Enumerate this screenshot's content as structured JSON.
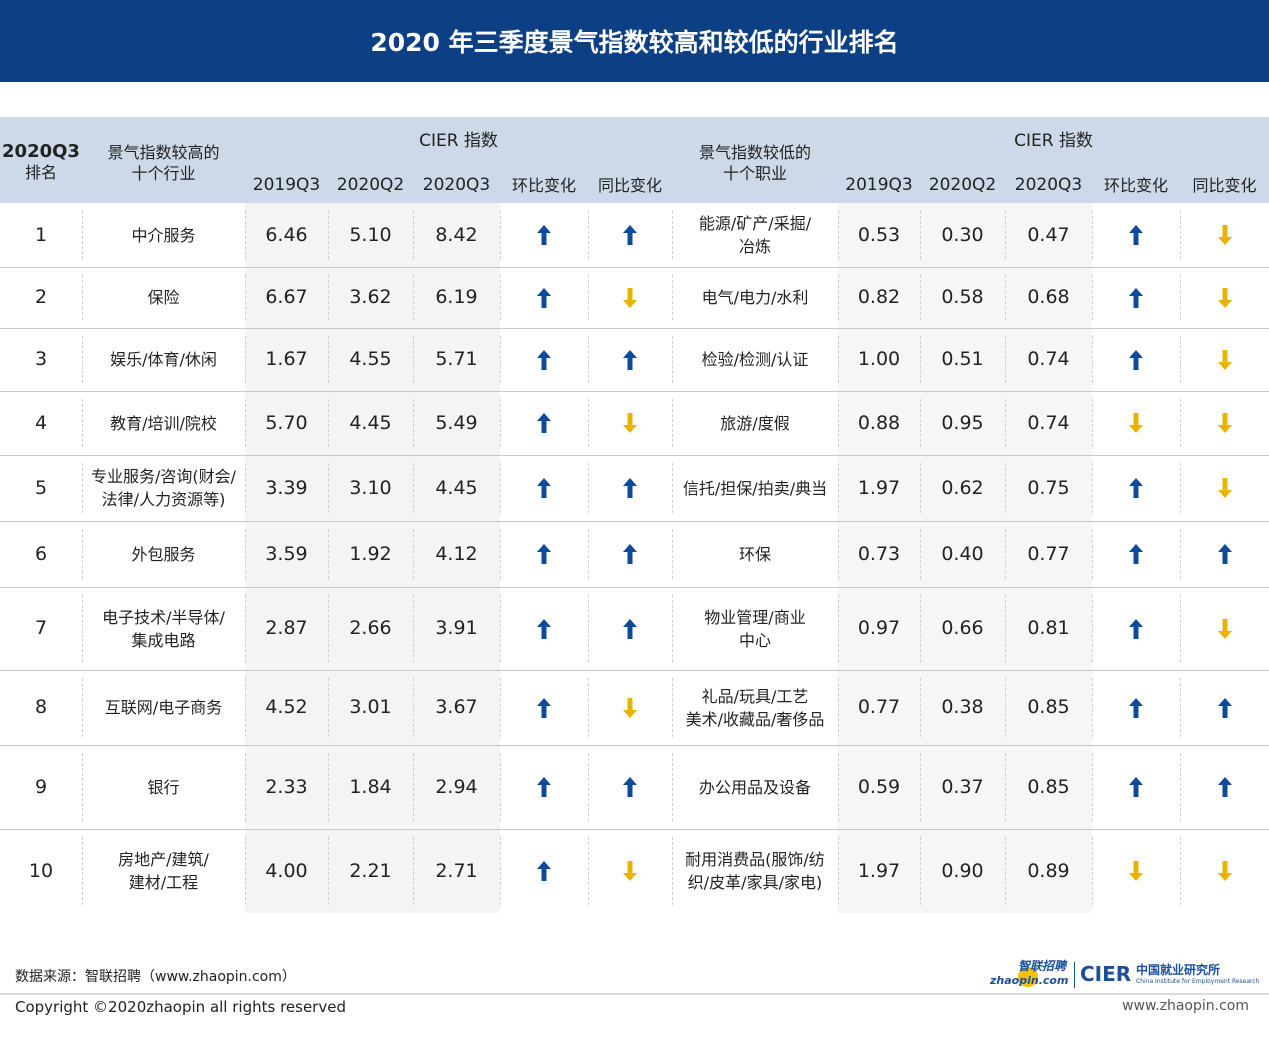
{
  "title": "2020 年三季度景气指数较高和较低的行业排名",
  "header": {
    "rank": [
      "2020Q3",
      "排名"
    ],
    "left_group": [
      "景气指数较高的",
      "十个行业"
    ],
    "right_group": [
      "景气指数较低的",
      "十个职业"
    ],
    "cier": "CIER 指数",
    "cols": [
      "2019Q3",
      "2020Q2",
      "2020Q3",
      "环比变化",
      "同比变化"
    ]
  },
  "colors": {
    "header_bg": "#0d3f85",
    "thead_bg": "#cdd9e9",
    "up": "#0d4a9a",
    "down": "#e8b400"
  },
  "chart_data": {
    "type": "table",
    "title": "2020 年三季度景气指数较高和较低的行业排名",
    "rows": [
      {
        "rank": "1",
        "high": {
          "name": [
            "中介服务"
          ],
          "v": [
            "6.46",
            "5.10",
            "8.42"
          ],
          "qoq": "up",
          "yoy": "up"
        },
        "low": {
          "name": [
            "能源/矿产/采掘/",
            "冶炼"
          ],
          "v": [
            "0.53",
            "0.30",
            "0.47"
          ],
          "qoq": "up",
          "yoy": "down"
        }
      },
      {
        "rank": "2",
        "high": {
          "name": [
            "保险"
          ],
          "v": [
            "6.67",
            "3.62",
            "6.19"
          ],
          "qoq": "up",
          "yoy": "down"
        },
        "low": {
          "name": [
            "电气/电力/水利"
          ],
          "v": [
            "0.82",
            "0.58",
            "0.68"
          ],
          "qoq": "up",
          "yoy": "down"
        }
      },
      {
        "rank": "3",
        "high": {
          "name": [
            "娱乐/体育/休闲"
          ],
          "v": [
            "1.67",
            "4.55",
            "5.71"
          ],
          "qoq": "up",
          "yoy": "up"
        },
        "low": {
          "name": [
            "检验/检测/认证"
          ],
          "v": [
            "1.00",
            "0.51",
            "0.74"
          ],
          "qoq": "up",
          "yoy": "down"
        }
      },
      {
        "rank": "4",
        "high": {
          "name": [
            "教育/培训/院校"
          ],
          "v": [
            "5.70",
            "4.45",
            "5.49"
          ],
          "qoq": "up",
          "yoy": "down"
        },
        "low": {
          "name": [
            "旅游/度假"
          ],
          "v": [
            "0.88",
            "0.95",
            "0.74"
          ],
          "qoq": "down",
          "yoy": "down"
        }
      },
      {
        "rank": "5",
        "high": {
          "name": [
            "专业服务/咨询(财会/",
            "法律/人力资源等)"
          ],
          "v": [
            "3.39",
            "3.10",
            "4.45"
          ],
          "qoq": "up",
          "yoy": "up"
        },
        "low": {
          "name": [
            "信托/担保/拍卖/典当"
          ],
          "v": [
            "1.97",
            "0.62",
            "0.75"
          ],
          "qoq": "up",
          "yoy": "down"
        }
      },
      {
        "rank": "6",
        "high": {
          "name": [
            "外包服务"
          ],
          "v": [
            "3.59",
            "1.92",
            "4.12"
          ],
          "qoq": "up",
          "yoy": "up"
        },
        "low": {
          "name": [
            "环保"
          ],
          "v": [
            "0.73",
            "0.40",
            "0.77"
          ],
          "qoq": "up",
          "yoy": "up"
        }
      },
      {
        "rank": "7",
        "high": {
          "name": [
            "电子技术/半导体/",
            "集成电路"
          ],
          "v": [
            "2.87",
            "2.66",
            "3.91"
          ],
          "qoq": "up",
          "yoy": "up"
        },
        "low": {
          "name": [
            "物业管理/商业",
            "中心"
          ],
          "v": [
            "0.97",
            "0.66",
            "0.81"
          ],
          "qoq": "up",
          "yoy": "down"
        }
      },
      {
        "rank": "8",
        "high": {
          "name": [
            "互联网/电子商务"
          ],
          "v": [
            "4.52",
            "3.01",
            "3.67"
          ],
          "qoq": "up",
          "yoy": "down"
        },
        "low": {
          "name": [
            "礼品/玩具/工艺",
            "美术/收藏品/奢侈品"
          ],
          "v": [
            "0.77",
            "0.38",
            "0.85"
          ],
          "qoq": "up",
          "yoy": "up"
        }
      },
      {
        "rank": "9",
        "high": {
          "name": [
            "银行"
          ],
          "v": [
            "2.33",
            "1.84",
            "2.94"
          ],
          "qoq": "up",
          "yoy": "up"
        },
        "low": {
          "name": [
            "办公用品及设备"
          ],
          "v": [
            "0.59",
            "0.37",
            "0.85"
          ],
          "qoq": "up",
          "yoy": "up"
        }
      },
      {
        "rank": "10",
        "high": {
          "name": [
            "房地产/建筑/",
            "建材/工程"
          ],
          "v": [
            "4.00",
            "2.21",
            "2.71"
          ],
          "qoq": "up",
          "yoy": "down"
        },
        "low": {
          "name": [
            "耐用消费品(服饰/纺",
            "织/皮革/家具/家电)"
          ],
          "v": [
            "1.97",
            "0.90",
            "0.89"
          ],
          "qoq": "down",
          "yoy": "down"
        }
      }
    ]
  },
  "footer": {
    "source": "数据来源：智联招聘（www.zhaopin.com）",
    "copyright": "Copyright ©2020zhaopin all rights reserved",
    "url": "www.zhaopin.com",
    "logo_zhaopin": "智联招聘 zhaopin.com",
    "logo_cier": "CIER 中国就业研究所 China Institute for Employment Research"
  }
}
